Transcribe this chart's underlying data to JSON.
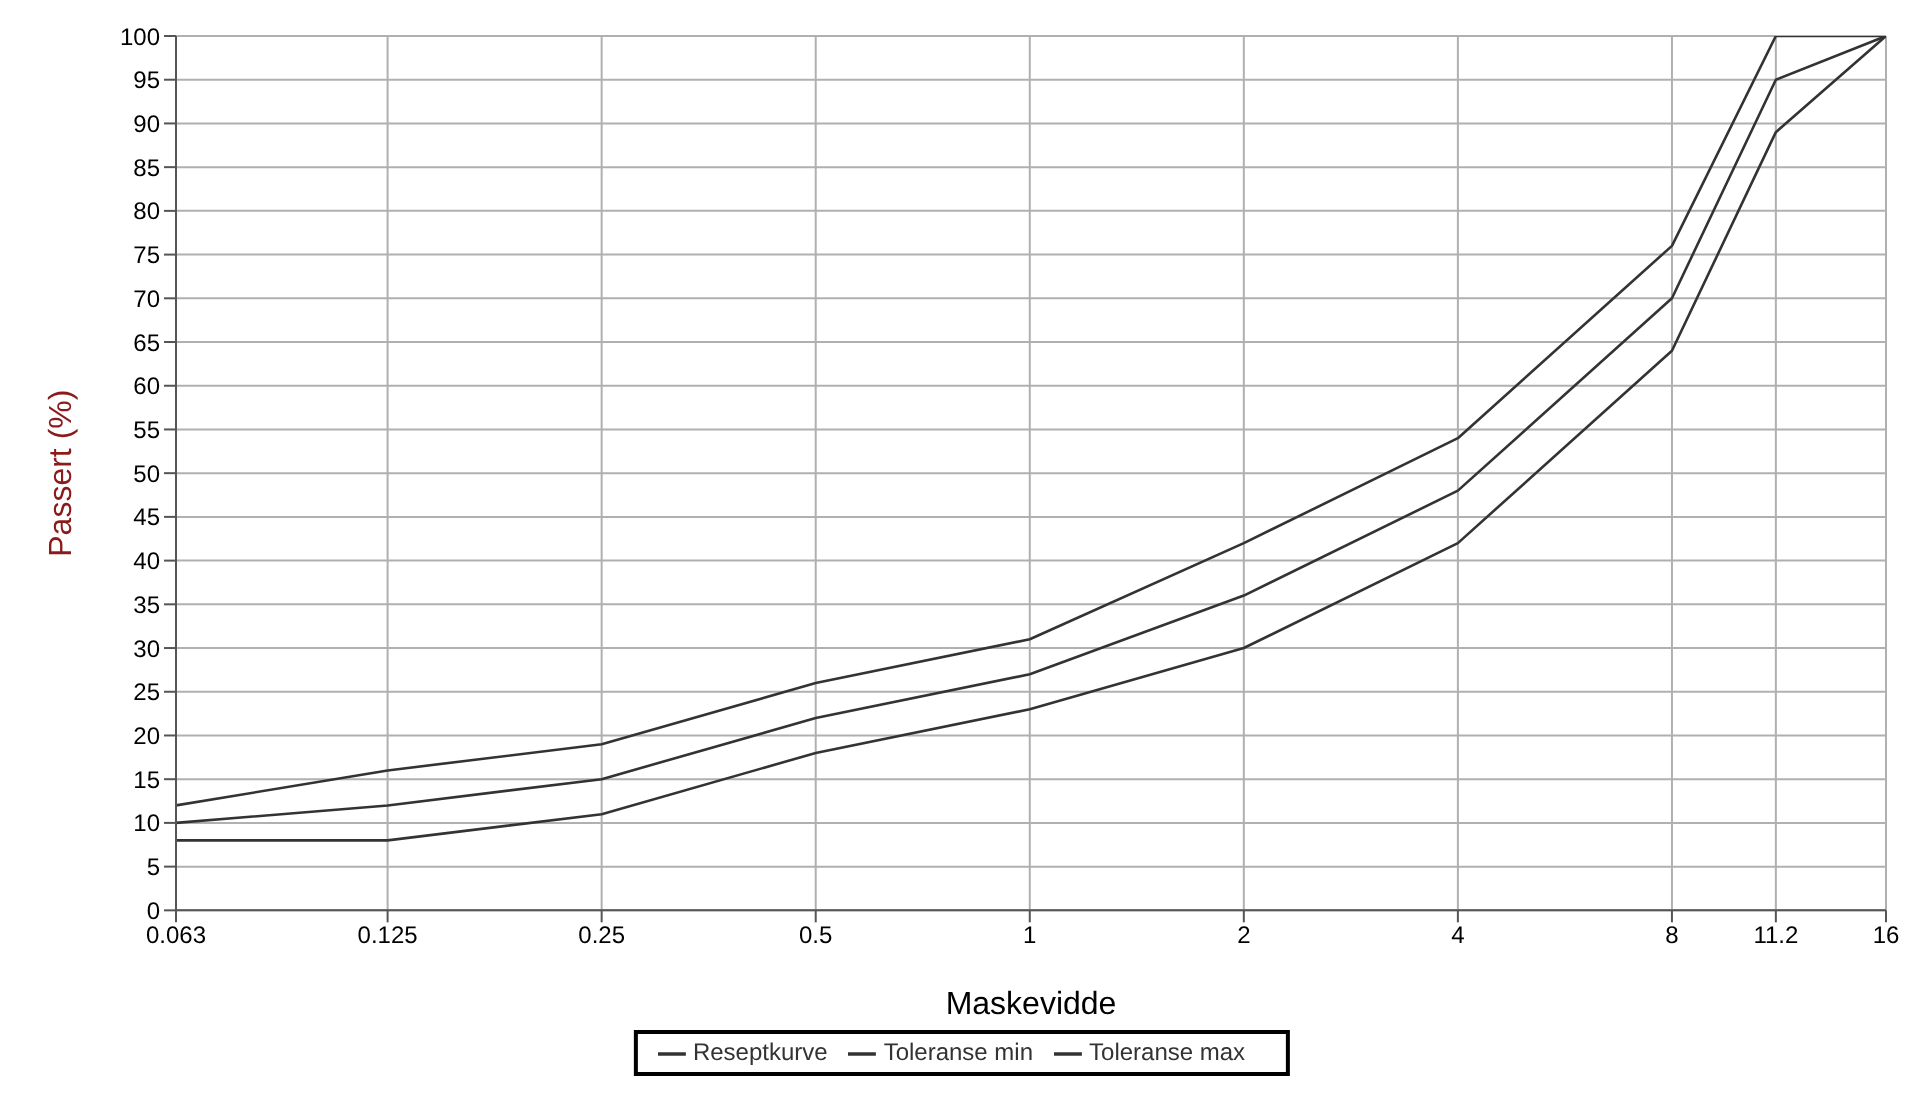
{
  "chart_data": {
    "type": "line",
    "xlabel": "Maskevidde",
    "ylabel": "Passert (%)",
    "x": [
      0.063,
      0.125,
      0.25,
      0.5,
      1,
      2,
      4,
      8,
      11.2,
      16
    ],
    "series": [
      {
        "name": "Reseptkurve",
        "color": "#333333",
        "values": [
          10,
          12,
          15,
          22,
          27,
          36,
          48,
          70,
          95,
          100
        ]
      },
      {
        "name": "Toleranse min",
        "color": "#333333",
        "values": [
          8,
          8,
          11,
          18,
          23,
          30,
          42,
          64,
          89,
          100
        ]
      },
      {
        "name": "Toleranse max",
        "color": "#333333",
        "values": [
          12,
          16,
          19,
          26,
          31,
          42,
          54,
          76,
          100,
          100
        ]
      }
    ],
    "log": "x",
    "xlim": [
      0.063,
      16
    ],
    "xticks": [
      0.063,
      0.125,
      0.25,
      0.5,
      1,
      2,
      4,
      8,
      11.2,
      16
    ],
    "ylim": [
      0,
      100
    ],
    "yticks": [
      0,
      5,
      10,
      15,
      20,
      25,
      30,
      35,
      40,
      45,
      50,
      55,
      60,
      65,
      70,
      75,
      80,
      85,
      90,
      95,
      100
    ],
    "grid": true,
    "legend": "bottom",
    "line_style": "solid"
  }
}
